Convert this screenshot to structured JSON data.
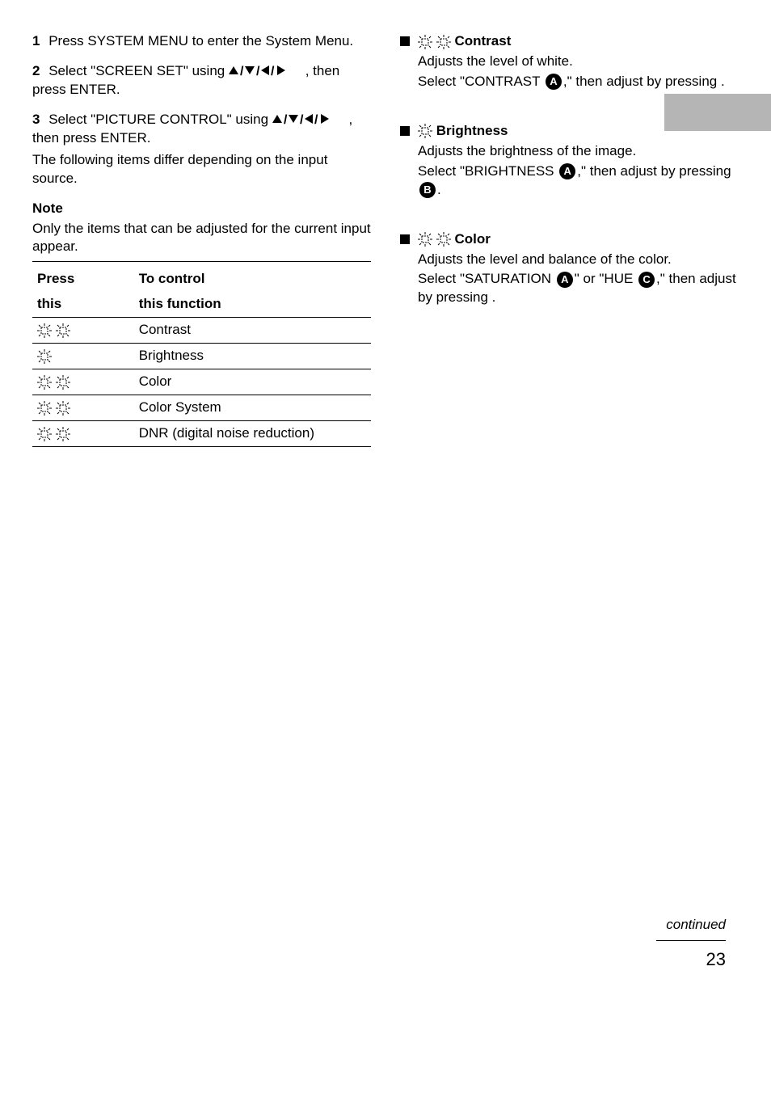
{
  "colors": {
    "text": "#000000",
    "bg": "#ffffff",
    "tab": "#b5b5b5"
  },
  "left": {
    "step1": {
      "num": "1",
      "text": "Press SYSTEM MENU to enter the System Menu."
    },
    "step2": {
      "num": "2",
      "text_a": "Select \"SCREEN SET\" using ",
      "text_b": ", then press ENTER."
    },
    "step3": {
      "num": "3",
      "text_a": "Select \"PICTURE CONTROL\" using ",
      "text_b": ", then press ENTER.",
      "sub": "The following items differ depending on the input source."
    },
    "note_title": "Note",
    "note_body": "Only the items that can be adjusted for the current input appear.",
    "table": {
      "head1a": "Press",
      "head1b": "To control",
      "head2a": "this",
      "head2b": "this function",
      "rows": [
        {
          "icons": 2,
          "label": "Contrast"
        },
        {
          "icons": 1,
          "label": "Brightness"
        },
        {
          "icons": 2,
          "label": "Color"
        },
        {
          "icons": 2,
          "label": "Color System"
        },
        {
          "icons": 2,
          "label": "DNR (digital noise reduction)"
        }
      ]
    }
  },
  "right": {
    "items": [
      {
        "title_a": "",
        "title_b": " Contrast",
        "title_icons": 2,
        "line1_a": "Adjusts the level of white.",
        "line1_b": "",
        "line2_a": "Select \"CONTRAST ",
        "line2_b": ",\" then adjust by pressing ",
        "line2_c": ".",
        "circled_in_line2": "A",
        "circled_at_end": null,
        "line_extra": null
      },
      {
        "title_a": "",
        "title_b": " Brightness",
        "title_icons": 1,
        "line1_a": "Adjusts the brightness of the image.",
        "line1_b": "",
        "line2_a": "Select \"BRIGHTNESS ",
        "line2_b": ",\" then adjust by pressing ",
        "line2_c": ".",
        "circled_in_line2": "A",
        "circled_at_end": "B",
        "line_extra": null
      },
      {
        "title_a": "",
        "title_b": " Color",
        "title_icons": 2,
        "line1_a": "Adjusts the level and balance of the color.",
        "line1_b": "",
        "line2_a": "Select \"SATURATION ",
        "line2_b": "\" or \"HUE ",
        "line2_c": ",\" then adjust by pressing ",
        "line2_d": ".",
        "circled_in_line2": "A",
        "circled_mid": "C",
        "circled_at_end": null,
        "line_extra": null
      }
    ]
  },
  "footer": {
    "continued": "continued",
    "page": "23"
  },
  "arrows_glyph": "M/m/</,"
}
